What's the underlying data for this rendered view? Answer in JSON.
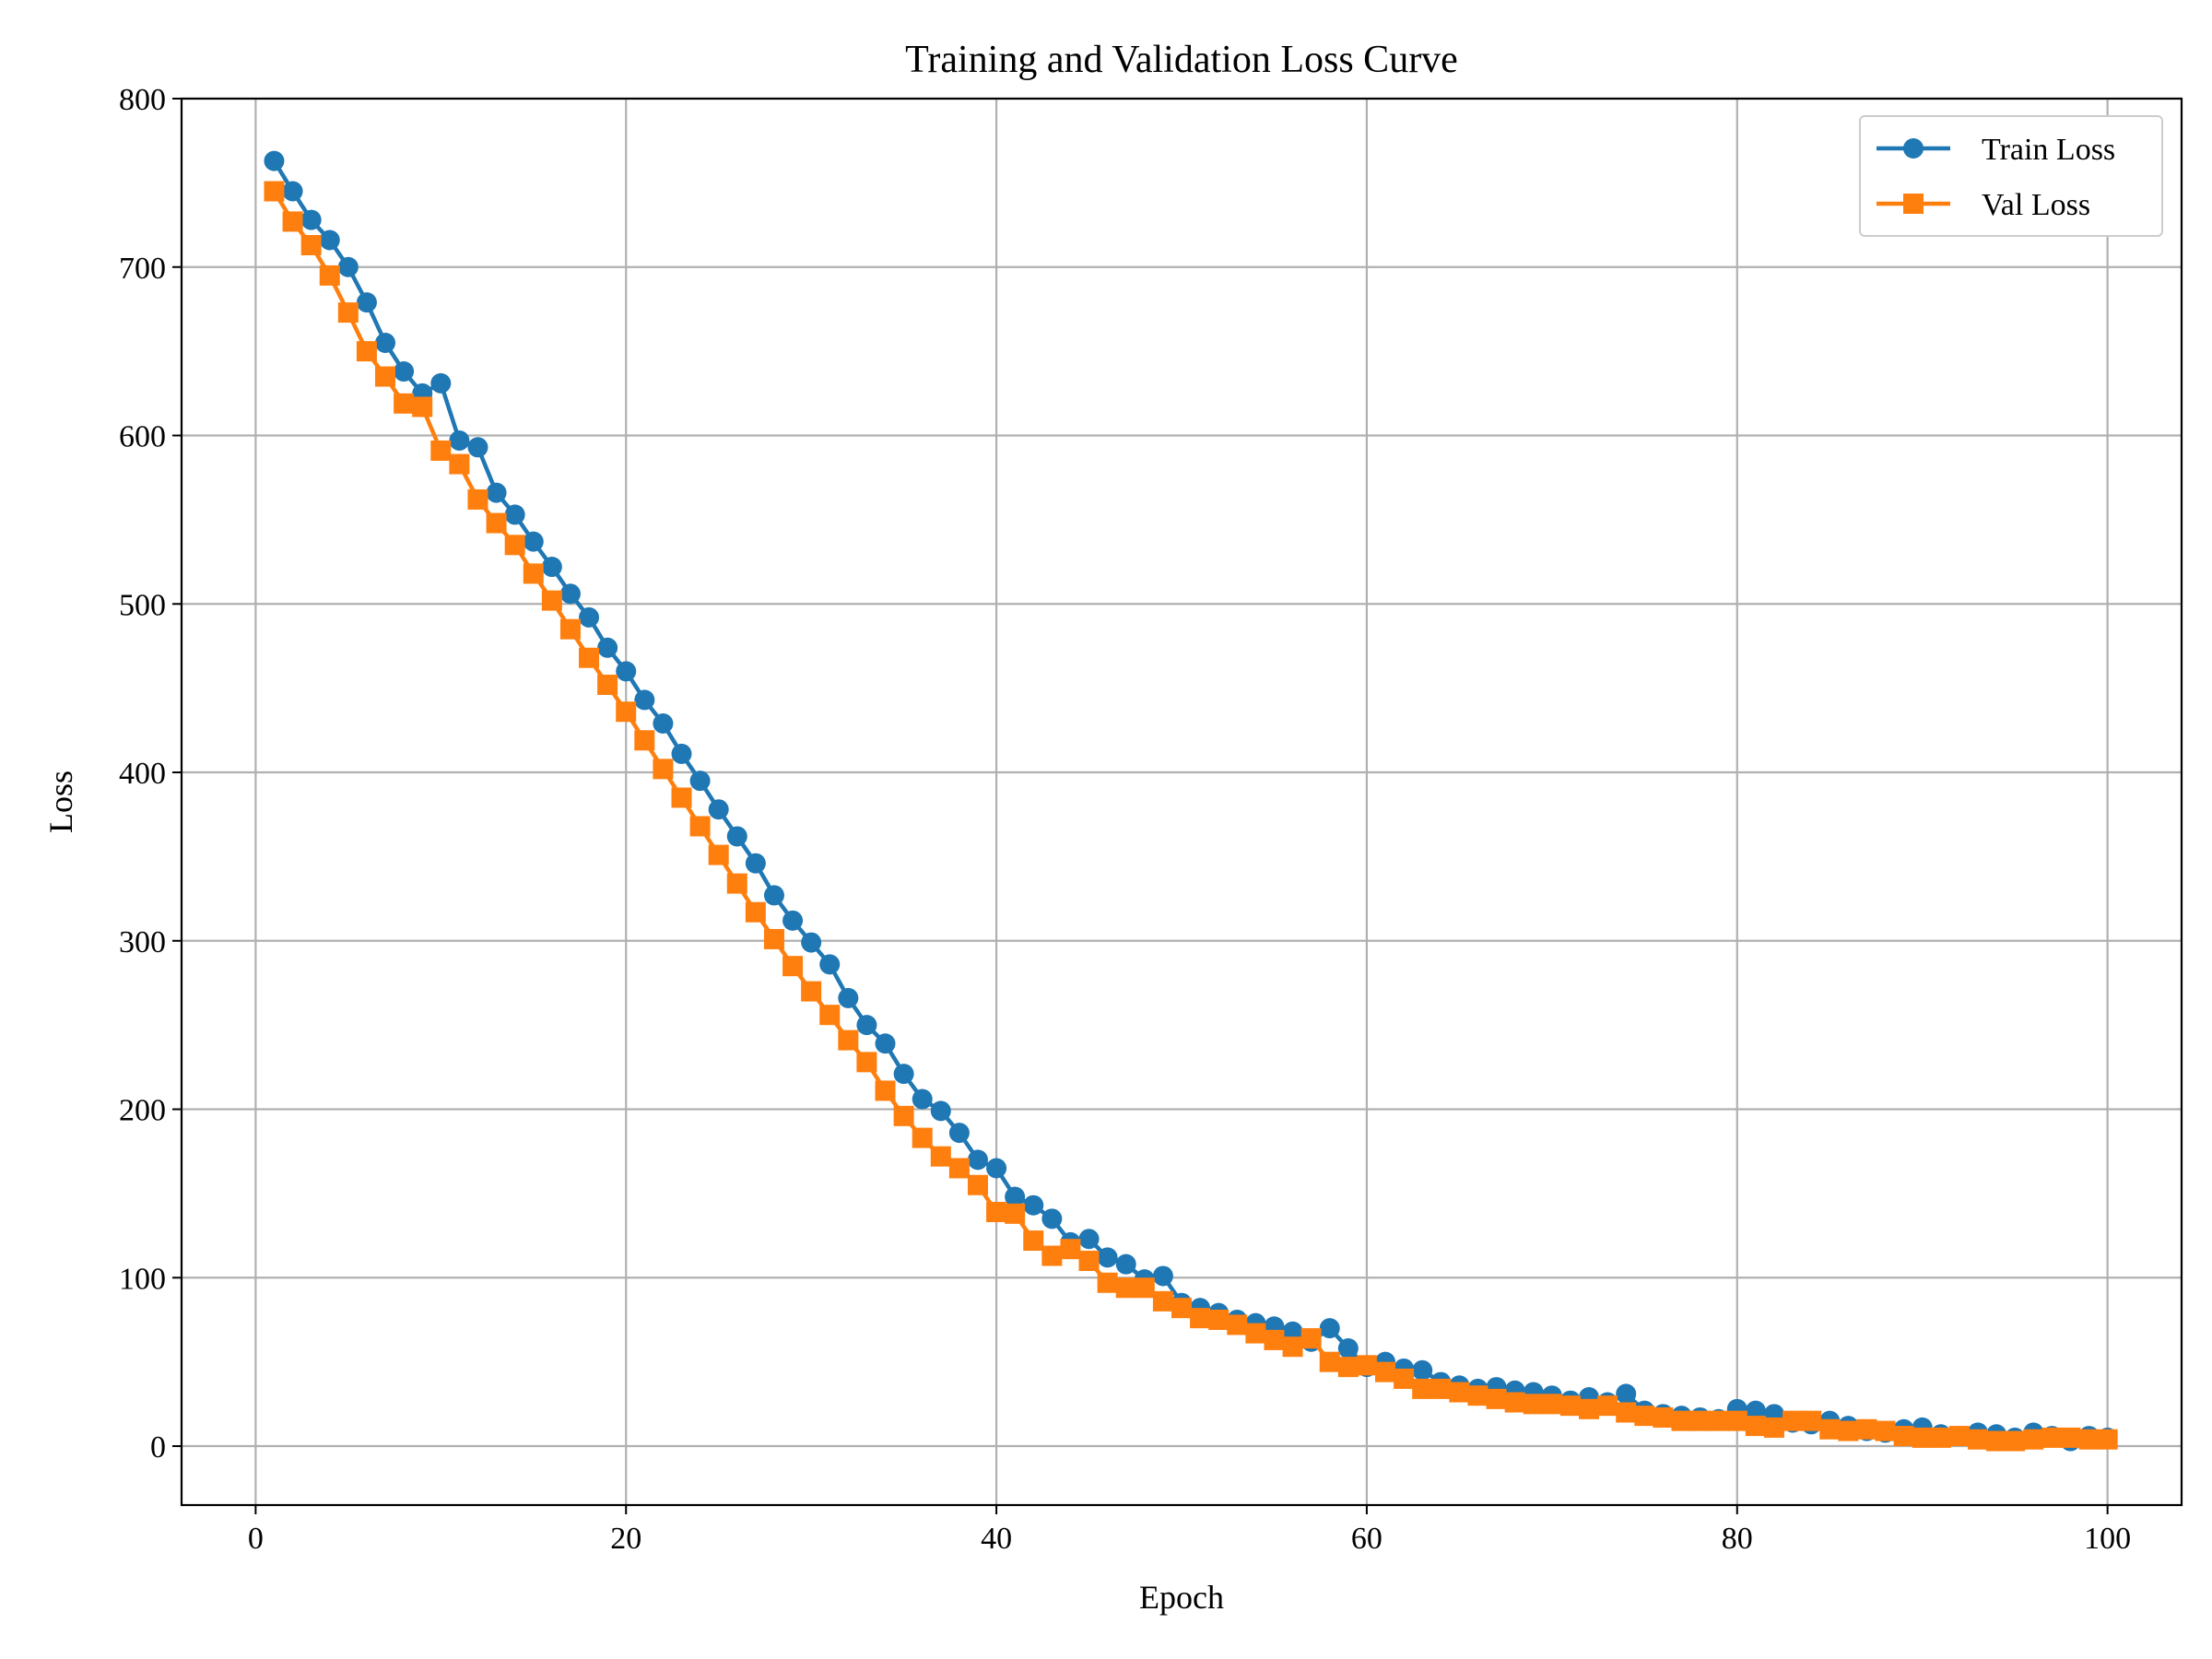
{
  "chart_data": {
    "type": "line",
    "title": "Training and Validation Loss Curve",
    "xlabel": "Epoch",
    "ylabel": "Loss",
    "xlim": [
      -4,
      104
    ],
    "ylim": [
      -35,
      800
    ],
    "xticks": [
      0,
      20,
      40,
      60,
      80,
      100
    ],
    "yticks": [
      0,
      100,
      200,
      300,
      400,
      500,
      600,
      700,
      800
    ],
    "grid": true,
    "legend_position": "top-right",
    "colors": {
      "train": "#1f77b4",
      "val": "#ff7f0e",
      "grid": "#b0b0b0"
    },
    "x": [
      1,
      2,
      3,
      4,
      5,
      6,
      7,
      8,
      9,
      10,
      11,
      12,
      13,
      14,
      15,
      16,
      17,
      18,
      19,
      20,
      21,
      22,
      23,
      24,
      25,
      26,
      27,
      28,
      29,
      30,
      31,
      32,
      33,
      34,
      35,
      36,
      37,
      38,
      39,
      40,
      41,
      42,
      43,
      44,
      45,
      46,
      47,
      48,
      49,
      50,
      51,
      52,
      53,
      54,
      55,
      56,
      57,
      58,
      59,
      60,
      61,
      62,
      63,
      64,
      65,
      66,
      67,
      68,
      69,
      70,
      71,
      72,
      73,
      74,
      75,
      76,
      77,
      78,
      79,
      80,
      81,
      82,
      83,
      84,
      85,
      86,
      87,
      88,
      89,
      90,
      91,
      92,
      93,
      94,
      95,
      96,
      97,
      98,
      99,
      100
    ],
    "series": [
      {
        "name": "Train Loss",
        "marker": "circle",
        "values": [
          763,
          745,
          728,
          716,
          700,
          679,
          655,
          638,
          625,
          631,
          597,
          593,
          566,
          553,
          537,
          522,
          506,
          492,
          474,
          460,
          443,
          429,
          411,
          395,
          378,
          362,
          346,
          327,
          312,
          299,
          286,
          266,
          250,
          239,
          221,
          206,
          199,
          186,
          170,
          165,
          148,
          143,
          135,
          121,
          123,
          112,
          108,
          99,
          101,
          85,
          82,
          79,
          75,
          73,
          71,
          68,
          62,
          70,
          58,
          47,
          50,
          46,
          45,
          38,
          36,
          34,
          35,
          33,
          32,
          30,
          27,
          29,
          26,
          31,
          21,
          19,
          18,
          17,
          16,
          22,
          21,
          19,
          14,
          13,
          15,
          12,
          9,
          8,
          10,
          11,
          7,
          6,
          8,
          7,
          5,
          8,
          6,
          3,
          6,
          5
        ]
      },
      {
        "name": "Val Loss",
        "marker": "square",
        "values": [
          745,
          727,
          713,
          695,
          673,
          650,
          635,
          619,
          617,
          591,
          583,
          562,
          548,
          535,
          518,
          502,
          485,
          468,
          452,
          436,
          419,
          402,
          385,
          368,
          351,
          334,
          317,
          301,
          285,
          270,
          256,
          241,
          228,
          211,
          196,
          183,
          172,
          165,
          155,
          139,
          138,
          122,
          113,
          117,
          110,
          97,
          94,
          94,
          86,
          82,
          76,
          75,
          72,
          67,
          63,
          59,
          64,
          50,
          47,
          48,
          44,
          40,
          34,
          34,
          32,
          30,
          28,
          26,
          25,
          25,
          24,
          22,
          24,
          20,
          18,
          17,
          15,
          15,
          15,
          15,
          12,
          11,
          15,
          15,
          10,
          9,
          10,
          9,
          6,
          5,
          5,
          6,
          4,
          3,
          3,
          4,
          5,
          5,
          4,
          4
        ]
      }
    ]
  }
}
